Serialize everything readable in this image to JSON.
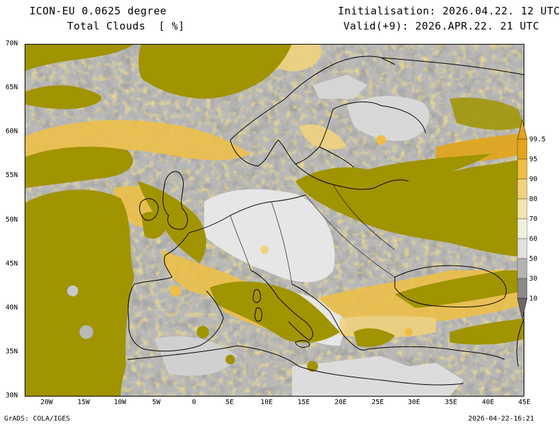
{
  "header": {
    "model": "ICON-EU 0.0625 degree",
    "variable": "Total Clouds  [ %]",
    "init": "Initialisation: 2026.04.22. 12 UTC",
    "valid": "Valid(+9): 2026.APR.22. 21 UTC"
  },
  "footer": {
    "credit": "GrADS: COLA/IGES",
    "timestamp": "2026-04-22-16:21"
  },
  "axes": {
    "lat_labels": [
      "70N",
      "65N",
      "60N",
      "55N",
      "50N",
      "45N",
      "40N",
      "35N",
      "30N"
    ],
    "lon_labels": [
      "20W",
      "15W",
      "10W",
      "5W",
      "0",
      "5E",
      "10E",
      "15E",
      "20E",
      "25E",
      "30E",
      "35E",
      "40E",
      "45E"
    ]
  },
  "colorbar": {
    "labels": [
      "99.5",
      "95",
      "90",
      "80",
      "70",
      "60",
      "50",
      "30",
      "10"
    ],
    "colors": [
      "#e2a41a",
      "#eebd43",
      "#f0d27e",
      "#f3e4b0",
      "#f0f0dd",
      "#e0e0e0",
      "#c9c9c9",
      "#a9a9a9",
      "#8a8a8a",
      "#6a6a6a"
    ],
    "overcast_color": "#a09400"
  },
  "legend_colors": {
    "clear": "#e6e6e6",
    "overcast": "#a09400"
  }
}
